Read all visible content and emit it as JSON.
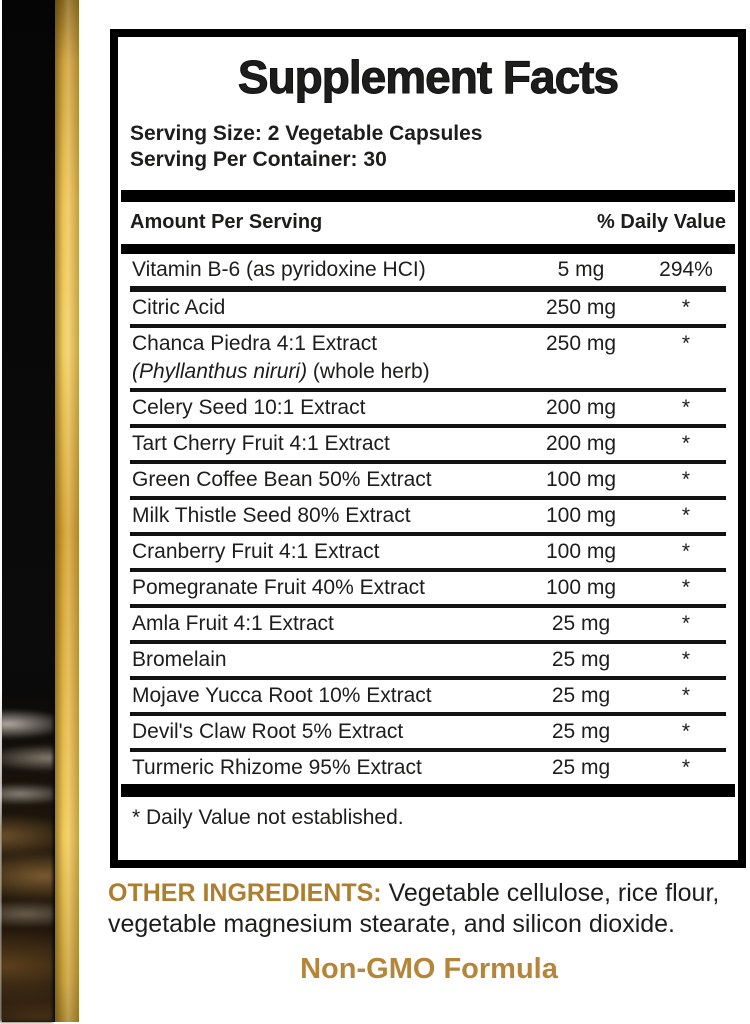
{
  "colors": {
    "accent_gold_label": "#ad7e2e",
    "accent_gold_nongmo": "#b5863a",
    "stripe_gold": "#d2a02e",
    "strip_black": "#0a0a0a",
    "ink": "#1d1d1b"
  },
  "panel": {
    "title": "Supplement Facts",
    "serving_size": "Serving Size: 2 Vegetable Capsules",
    "servings_per_container": "Serving Per Container: 30",
    "columns": {
      "amount_header": "Amount Per Serving",
      "dv_header": "% Daily Value"
    },
    "rows": [
      {
        "name": "Vitamin B-6 (as pyridoxine HCI)",
        "amount": "5 mg",
        "dv": "294%"
      },
      {
        "name": "Citric Acid",
        "amount": "250 mg",
        "dv": "*"
      },
      {
        "name": "Chanca Piedra 4:1 Extract",
        "botanical": "(Phyllanthus niruri)",
        "part": " (whole herb)",
        "amount": "250 mg",
        "dv": "*"
      },
      {
        "name": "Celery Seed 10:1 Extract",
        "amount": "200 mg",
        "dv": "*"
      },
      {
        "name": "Tart Cherry Fruit 4:1 Extract",
        "amount": "200 mg",
        "dv": "*"
      },
      {
        "name": "Green Coffee Bean 50% Extract",
        "amount": "100 mg",
        "dv": "*"
      },
      {
        "name": "Milk Thistle Seed 80% Extract",
        "amount": "100 mg",
        "dv": "*"
      },
      {
        "name": "Cranberry Fruit 4:1 Extract",
        "amount": "100 mg",
        "dv": "*"
      },
      {
        "name": "Pomegranate Fruit 40% Extract",
        "amount": "100 mg",
        "dv": "*"
      },
      {
        "name": "Amla Fruit 4:1 Extract",
        "amount": "25 mg",
        "dv": "*"
      },
      {
        "name": "Bromelain",
        "amount": "25 mg",
        "dv": "*"
      },
      {
        "name": "Mojave Yucca Root 10% Extract",
        "amount": "25 mg",
        "dv": "*"
      },
      {
        "name": "Devil's Claw Root 5% Extract",
        "amount": "25 mg",
        "dv": "*"
      },
      {
        "name": "Turmeric Rhizome 95% Extract",
        "amount": "25 mg",
        "dv": "*"
      }
    ],
    "footnote": "* Daily Value not established."
  },
  "footer": {
    "other_ingredients_label": "OTHER INGREDIENTS:",
    "other_ingredients_text": " Vegetable cellulose, rice flour, vegetable magnesium stearate, and silicon dioxide.",
    "non_gmo": "Non-GMO Formula"
  }
}
